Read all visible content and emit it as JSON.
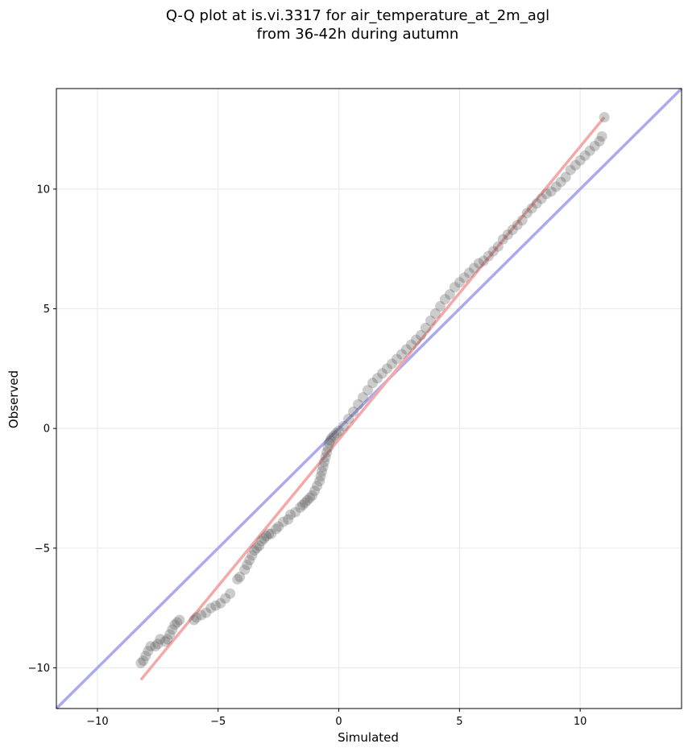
{
  "chart_data": {
    "type": "scatter",
    "title": "Q-Q plot at is.vi.3317 for air_temperature_at_2m_agl",
    "subtitle": "from 36-42h during autumn",
    "xlabel": "Simulated",
    "ylabel": "Observed",
    "xlim": [
      -11.7,
      14.2
    ],
    "ylim": [
      -11.7,
      14.2
    ],
    "xticks": [
      -10,
      -5,
      0,
      5,
      10
    ],
    "yticks": [
      -10,
      -5,
      0,
      5,
      10
    ],
    "xtick_labels": [
      "−10",
      "−5",
      "0",
      "5",
      "10"
    ],
    "ytick_labels": [
      "−10",
      "−5",
      "0",
      "5",
      "10"
    ],
    "grid": true,
    "colors": {
      "identity_line": "#aaaaf0",
      "fit_line": "#f4a8a8",
      "points": "#555555"
    },
    "reference_lines": [
      {
        "x": [
          -11.7,
          14.2
        ],
        "y": [
          -11.7,
          14.2
        ],
        "color": "#aaaaf0"
      },
      {
        "x": [
          -8.2,
          11.0
        ],
        "y": [
          -10.5,
          13.0
        ],
        "color": "#f4a8a8"
      }
    ],
    "series": [
      {
        "x": [
          -8.2,
          -8.1,
          -8.0,
          -7.9,
          -7.8,
          -7.6,
          -7.5,
          -7.4,
          -7.2,
          -7.1,
          -7.0,
          -6.9,
          -6.8,
          -6.7,
          -6.6,
          -6.0,
          -5.9,
          -5.7,
          -5.5,
          -5.3,
          -5.1,
          -4.9,
          -4.7,
          -4.5,
          -4.2,
          -4.1,
          -3.9,
          -3.8,
          -3.7,
          -3.6,
          -3.5,
          -3.4,
          -3.3,
          -3.2,
          -3.1,
          -3.0,
          -2.9,
          -2.8,
          -2.6,
          -2.5,
          -2.3,
          -2.1,
          -2.0,
          -1.8,
          -1.6,
          -1.5,
          -1.4,
          -1.3,
          -1.2,
          -1.1,
          -1.0,
          -0.9,
          -0.8,
          -0.75,
          -0.7,
          -0.65,
          -0.6,
          -0.55,
          -0.5,
          -0.45,
          -0.4,
          -0.35,
          -0.3,
          -0.2,
          -0.1,
          0.0,
          0.2,
          0.4,
          0.6,
          0.8,
          1.0,
          1.2,
          1.4,
          1.6,
          1.8,
          2.0,
          2.2,
          2.4,
          2.6,
          2.8,
          3.0,
          3.2,
          3.4,
          3.6,
          3.8,
          4.0,
          4.2,
          4.4,
          4.6,
          4.8,
          5.0,
          5.2,
          5.4,
          5.6,
          5.8,
          6.0,
          6.2,
          6.4,
          6.6,
          6.8,
          7.0,
          7.2,
          7.4,
          7.6,
          7.8,
          8.0,
          8.2,
          8.4,
          8.6,
          8.8,
          9.0,
          9.2,
          9.4,
          9.6,
          9.8,
          10.0,
          10.2,
          10.4,
          10.6,
          10.8,
          10.9,
          11.0
        ],
        "y": [
          -9.8,
          -9.7,
          -9.5,
          -9.3,
          -9.1,
          -9.1,
          -9.0,
          -8.8,
          -8.9,
          -8.8,
          -8.6,
          -8.4,
          -8.2,
          -8.1,
          -8.0,
          -8.0,
          -7.9,
          -7.8,
          -7.7,
          -7.5,
          -7.4,
          -7.3,
          -7.1,
          -6.9,
          -6.3,
          -6.2,
          -5.9,
          -5.7,
          -5.5,
          -5.3,
          -5.1,
          -5.0,
          -4.9,
          -4.7,
          -4.6,
          -4.5,
          -4.4,
          -4.4,
          -4.2,
          -4.1,
          -3.9,
          -3.8,
          -3.6,
          -3.5,
          -3.3,
          -3.2,
          -3.1,
          -3.0,
          -2.9,
          -2.8,
          -2.6,
          -2.4,
          -2.2,
          -2.0,
          -1.8,
          -1.6,
          -1.4,
          -1.2,
          -1.0,
          -0.8,
          -0.6,
          -0.5,
          -0.4,
          -0.3,
          -0.2,
          -0.1,
          0.1,
          0.4,
          0.7,
          1.0,
          1.3,
          1.6,
          1.9,
          2.1,
          2.3,
          2.5,
          2.7,
          2.9,
          3.1,
          3.3,
          3.5,
          3.7,
          3.9,
          4.2,
          4.5,
          4.8,
          5.1,
          5.4,
          5.6,
          5.9,
          6.1,
          6.3,
          6.5,
          6.7,
          6.9,
          7.0,
          7.2,
          7.4,
          7.6,
          7.9,
          8.1,
          8.3,
          8.5,
          8.7,
          9.0,
          9.2,
          9.4,
          9.6,
          9.8,
          9.9,
          10.1,
          10.3,
          10.5,
          10.8,
          11.0,
          11.2,
          11.4,
          11.6,
          11.8,
          12.0,
          12.2,
          13.0
        ]
      }
    ]
  }
}
